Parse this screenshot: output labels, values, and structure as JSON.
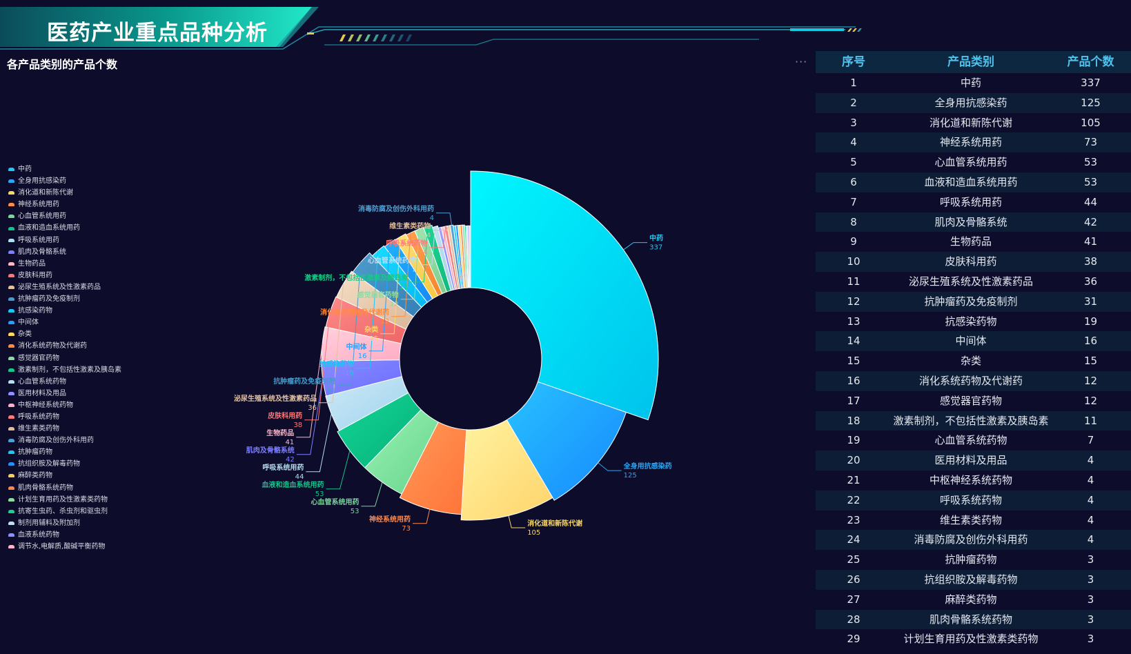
{
  "page_title": "医药产业重点品种分析",
  "chart_title": "各产品类别的产品个数",
  "more_label": "···",
  "table": {
    "headers": [
      "序号",
      "产品类别",
      "产品个数"
    ],
    "rows": [
      [
        "1",
        "中药",
        "337"
      ],
      [
        "2",
        "全身用抗感染药",
        "125"
      ],
      [
        "3",
        "消化道和新陈代谢",
        "105"
      ],
      [
        "4",
        "神经系统用药",
        "73"
      ],
      [
        "5",
        "心血管系统用药",
        "53"
      ],
      [
        "6",
        "血液和造血系统用药",
        "53"
      ],
      [
        "7",
        "呼吸系统用药",
        "44"
      ],
      [
        "8",
        "肌肉及骨骼系统",
        "42"
      ],
      [
        "9",
        "生物药品",
        "41"
      ],
      [
        "10",
        "皮肤科用药",
        "38"
      ],
      [
        "11",
        "泌尿生殖系统及性激素药品",
        "36"
      ],
      [
        "12",
        "抗肿瘤药及免疫制剂",
        "31"
      ],
      [
        "13",
        "抗感染药物",
        "19"
      ],
      [
        "14",
        "中间体",
        "16"
      ],
      [
        "15",
        "杂类",
        "15"
      ],
      [
        "16",
        "消化系统药物及代谢药",
        "12"
      ],
      [
        "17",
        "感觉器官药物",
        "12"
      ],
      [
        "18",
        "激素制剂，不包括性激素及胰岛素",
        "11"
      ],
      [
        "19",
        "心血管系统药物",
        "7"
      ],
      [
        "20",
        "医用材料及用品",
        "4"
      ],
      [
        "21",
        "中枢神经系统药物",
        "4"
      ],
      [
        "22",
        "呼吸系统药物",
        "4"
      ],
      [
        "23",
        "维生素类药物",
        "4"
      ],
      [
        "24",
        "消毒防腐及创伤外科用药",
        "4"
      ],
      [
        "25",
        "抗肿瘤药物",
        "3"
      ],
      [
        "26",
        "抗组织胺及解毒药物",
        "3"
      ],
      [
        "27",
        "麻醉类药物",
        "3"
      ],
      [
        "28",
        "肌肉骨骼系统药物",
        "3"
      ],
      [
        "29",
        "计划生育用药及性激素类药物",
        "3"
      ]
    ]
  },
  "chart_data": {
    "type": "pie",
    "title": "各产品类别的产品个数",
    "donut": true,
    "legend_position": "left",
    "categories": [
      "中药",
      "全身用抗感染药",
      "消化道和新陈代谢",
      "神经系统用药",
      "心血管系统用药",
      "血液和造血系统用药",
      "呼吸系统用药",
      "肌肉及骨骼系统",
      "生物药品",
      "皮肤科用药",
      "泌尿生殖系统及性激素药品",
      "抗肿瘤药及免疫制剂",
      "抗感染药物",
      "中间体",
      "杂类",
      "消化系统药物及代谢药",
      "感觉器官药物",
      "激素制剂，不包括性激素及胰岛素",
      "心血管系统药物",
      "医用材料及用品",
      "中枢神经系统药物",
      "呼吸系统药物",
      "维生素类药物",
      "消毒防腐及创伤外科用药",
      "抗肿瘤药物",
      "抗组织胺及解毒药物",
      "麻醉类药物",
      "肌肉骨骼系统药物",
      "计划生育用药及性激素类药物",
      "抗寄生虫药、杀虫剂和驱虫剂",
      "制剂用辅料及附加剂",
      "血液系统药物",
      "调节水,电解质,酸碱平衡药物"
    ],
    "values": [
      337,
      125,
      105,
      73,
      53,
      53,
      44,
      42,
      41,
      38,
      36,
      31,
      19,
      16,
      15,
      12,
      12,
      11,
      7,
      4,
      4,
      4,
      4,
      4,
      3,
      3,
      3,
      3,
      3,
      2,
      2,
      2,
      2
    ],
    "labeled": [
      true,
      true,
      true,
      true,
      true,
      true,
      true,
      true,
      true,
      true,
      true,
      true,
      true,
      true,
      true,
      true,
      true,
      true,
      true,
      false,
      false,
      true,
      true,
      true,
      false,
      false,
      false,
      false,
      false,
      false,
      false,
      false,
      false
    ],
    "colors": [
      [
        "#00f7ff",
        "#00c3ec"
      ],
      [
        "#28c2ff",
        "#1688ff"
      ],
      [
        "#fff3a0",
        "#ffd36b"
      ],
      [
        "#ff9a58",
        "#ff7338"
      ],
      [
        "#9af2b1",
        "#66d48f"
      ],
      [
        "#14d696",
        "#06b078"
      ],
      [
        "#cde9f6",
        "#9fd3ee"
      ],
      [
        "#8a8cff",
        "#6a6cff"
      ],
      [
        "#ffd0de",
        "#ffadc3"
      ],
      [
        "#ff8a8a",
        "#ec6767"
      ],
      [
        "#f6e0c6",
        "#d9b79a"
      ],
      [
        "#4f9bcc",
        "#3581b8"
      ],
      [
        "#18dcff",
        "#06b8f3"
      ],
      [
        "#1fb2ff",
        "#1789f5"
      ],
      [
        "#ffe27b",
        "#f5c742"
      ],
      [
        "#ff9f50",
        "#f5862c"
      ],
      [
        "#a2e6b2",
        "#7ccd8d"
      ],
      [
        "#1ed796",
        "#10b97a"
      ],
      [
        "#c6e3f4",
        "#a4cfe9"
      ],
      [
        "#9ea0ff",
        "#7c7fff"
      ],
      [
        "#ffc3d5",
        "#f3a3ba"
      ],
      [
        "#ff8c8c",
        "#ec6b6b"
      ],
      [
        "#f0d1b0",
        "#d6b08a"
      ],
      [
        "#57a8d6",
        "#3a8fc4"
      ],
      [
        "#2ad6ff",
        "#0ab4ec"
      ],
      [
        "#2f9bf7",
        "#1d7ee6"
      ],
      [
        "#ffe083",
        "#f2c552"
      ],
      [
        "#ff9a5a",
        "#ef7c3a"
      ],
      [
        "#a5e7b7",
        "#7fd194"
      ],
      [
        "#2edb9f",
        "#17be83"
      ],
      [
        "#d0e6f5",
        "#aad2ec"
      ],
      [
        "#a3a4ff",
        "#8284ff"
      ],
      [
        "#ffccd9",
        "#f3a8bd"
      ]
    ],
    "legend_colors": [
      "#22c7f0",
      "#2aa6f2",
      "#f5d76e",
      "#ff8a4c",
      "#79d79b",
      "#12c38a",
      "#b3ddf0",
      "#7d7fff",
      "#ffb7ca",
      "#ff7676",
      "#e3c2a2",
      "#459ccc",
      "#18c8f5",
      "#22a1ff",
      "#ffd860",
      "#ff8c40",
      "#8fdaa2",
      "#18c888",
      "#b8dcf0",
      "#8f90ff",
      "#ffb0c5",
      "#ff7b7b",
      "#e0bd98",
      "#4ea0d0",
      "#1ec8f4",
      "#2a8ef0",
      "#f3cf5c",
      "#f78a4a",
      "#8fdaa2",
      "#1ccd90",
      "#c0def0",
      "#8e90ff",
      "#ffb8cb"
    ]
  }
}
